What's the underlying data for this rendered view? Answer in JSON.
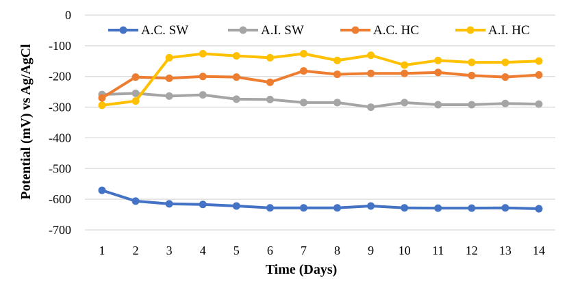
{
  "chart_data": {
    "type": "line",
    "title": "",
    "xlabel": "Time (Days)",
    "ylabel": "Potential (mV) vs Ag/AgCl",
    "ylim": [
      -700,
      0
    ],
    "yticks": [
      0,
      -100,
      -200,
      -300,
      -400,
      -500,
      -600,
      -700
    ],
    "x": [
      1,
      2,
      3,
      4,
      5,
      6,
      7,
      8,
      9,
      10,
      11,
      12,
      13,
      14
    ],
    "grid": "horizontal",
    "legend_position": "top",
    "series": [
      {
        "name": "A.C.  SW",
        "color": "#4472C4",
        "values": [
          -571,
          -606,
          -615,
          -617,
          -622,
          -628,
          -628,
          -628,
          -622,
          -628,
          -629,
          -629,
          -628,
          -631
        ]
      },
      {
        "name": "A.I. SW",
        "color": "#A5A5A5",
        "values": [
          -259,
          -255,
          -264,
          -260,
          -274,
          -275,
          -285,
          -285,
          -300,
          -285,
          -292,
          -292,
          -288,
          -290
        ]
      },
      {
        "name": "A.C. HC",
        "color": "#ED7D31",
        "values": [
          -270,
          -202,
          -206,
          -200,
          -202,
          -219,
          -182,
          -193,
          -190,
          -190,
          -187,
          -197,
          -202,
          -195
        ]
      },
      {
        "name": "A.I. HC",
        "color": "#FFC000",
        "values": [
          -294,
          -280,
          -139,
          -126,
          -133,
          -139,
          -126,
          -148,
          -131,
          -163,
          -148,
          -154,
          -154,
          -150
        ]
      }
    ]
  }
}
